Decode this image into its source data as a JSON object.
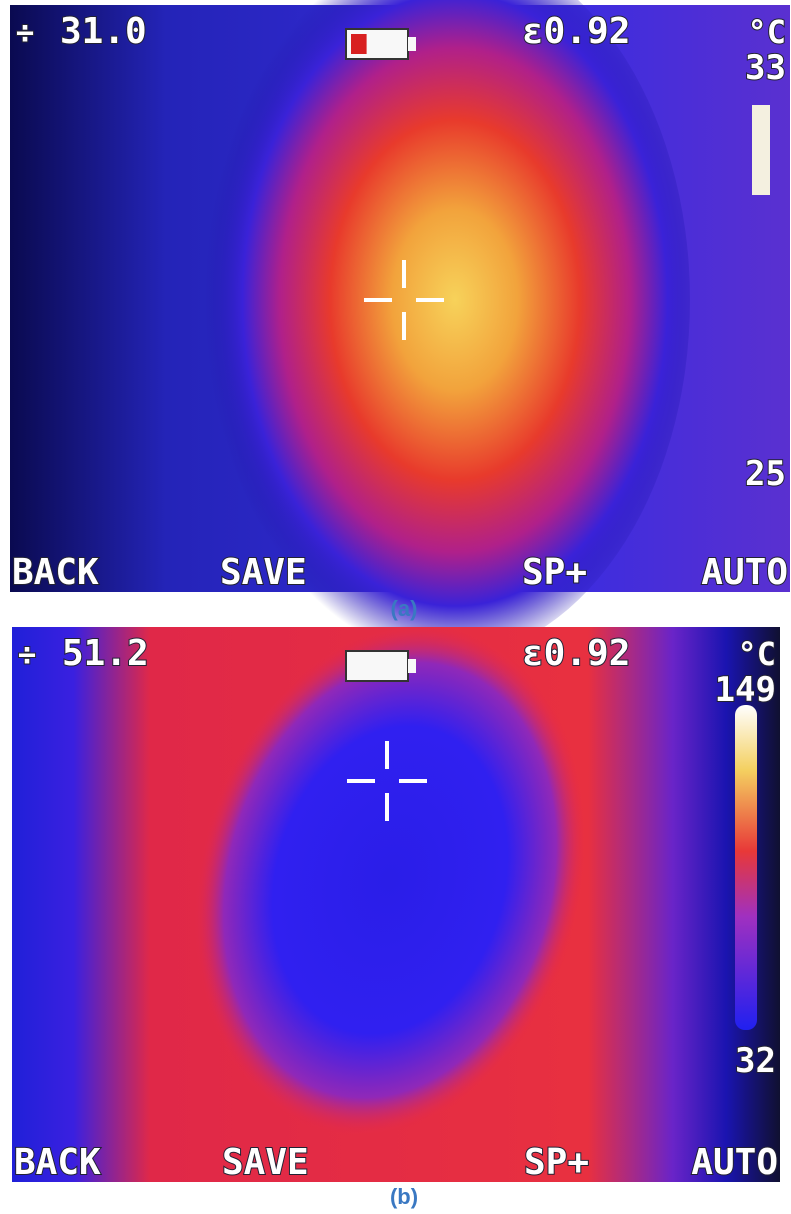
{
  "panels": [
    {
      "label": "(a)",
      "spot_temperature": "31.0",
      "emissivity": "ε0.92",
      "unit": "°C",
      "scale_max": "33",
      "scale_min": "25",
      "buttons": [
        "BACK",
        "SAVE",
        "SP+",
        "AUTO"
      ]
    },
    {
      "label": "(b)",
      "spot_temperature": "51.2",
      "emissivity": "ε0.92",
      "unit": "°C",
      "scale_max": "149",
      "scale_min": "32",
      "buttons": [
        "BACK",
        "SAVE",
        "SP+",
        "AUTO"
      ]
    }
  ]
}
